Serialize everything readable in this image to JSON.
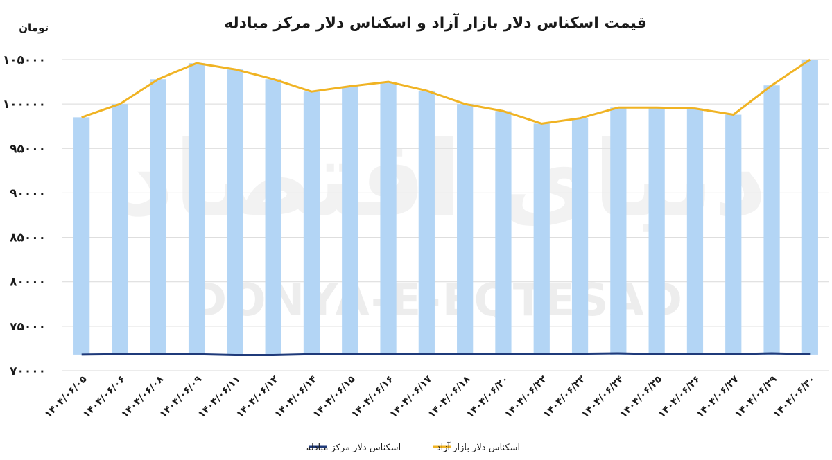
{
  "chart_data": {
    "type": "bar",
    "title": "قیمت اسکناس دلار بازار آزاد و اسکناس دلار مرکز مبادله",
    "ylabel": "تومان",
    "ylim": [
      70000,
      105000
    ],
    "yticks": [
      105000,
      100000,
      95000,
      90000,
      85000,
      80000,
      75000,
      70000
    ],
    "ytick_labels": [
      "۱۰۵۰۰۰",
      "۱۰۰۰۰۰",
      "۹۵۰۰۰",
      "۹۰۰۰۰",
      "۸۵۰۰۰",
      "۸۰۰۰۰",
      "۷۵۰۰۰",
      "۷۰۰۰۰"
    ],
    "categories": [
      "۱۴۰۴/۰۶/۰۵",
      "۱۴۰۴/۰۶/۰۶",
      "۱۴۰۴/۰۶/۰۸",
      "۱۴۰۴/۰۶/۰۹",
      "۱۴۰۴/۰۶/۱۱",
      "۱۴۰۴/۰۶/۱۲",
      "۱۴۰۴/۰۶/۱۴",
      "۱۴۰۴/۰۶/۱۵",
      "۱۴۰۴/۰۶/۱۶",
      "۱۴۰۴/۰۶/۱۷",
      "۱۴۰۴/۰۶/۱۸",
      "۱۴۰۴/۰۶/۲۰",
      "۱۴۰۴/۰۶/۲۲",
      "۱۴۰۴/۰۶/۲۳",
      "۱۴۰۴/۰۶/۲۴",
      "۱۴۰۴/۰۶/۲۵",
      "۱۴۰۴/۰۶/۲۶",
      "۱۴۰۴/۰۶/۲۷",
      "۱۴۰۴/۰۶/۲۹",
      "۱۴۰۴/۰۶/۳۰"
    ],
    "series": [
      {
        "name": "اسکناس دلار مرکز مبادله",
        "kind": "line",
        "color": "#1f3a7a",
        "values": [
          71800,
          71850,
          71850,
          71850,
          71750,
          71750,
          71850,
          71850,
          71850,
          71850,
          71850,
          71900,
          71900,
          71900,
          71950,
          71850,
          71850,
          71850,
          71950,
          71850
        ]
      },
      {
        "name": "اسکناس دلار بازار آزاد",
        "kind": "bar+line",
        "bar_color": "#b3d5f5",
        "line_color": "#f0b323",
        "values": [
          98500,
          100000,
          102800,
          104600,
          103900,
          102800,
          101400,
          102000,
          102500,
          101500,
          100000,
          99200,
          97800,
          98400,
          99600,
          99600,
          99500,
          98800,
          102100,
          105000
        ]
      }
    ],
    "grid": true,
    "legend": "bottom",
    "watermark": {
      "text": "DONYA-E-EQTESAD",
      "logo_text": "دنیای اقتصاد"
    }
  }
}
